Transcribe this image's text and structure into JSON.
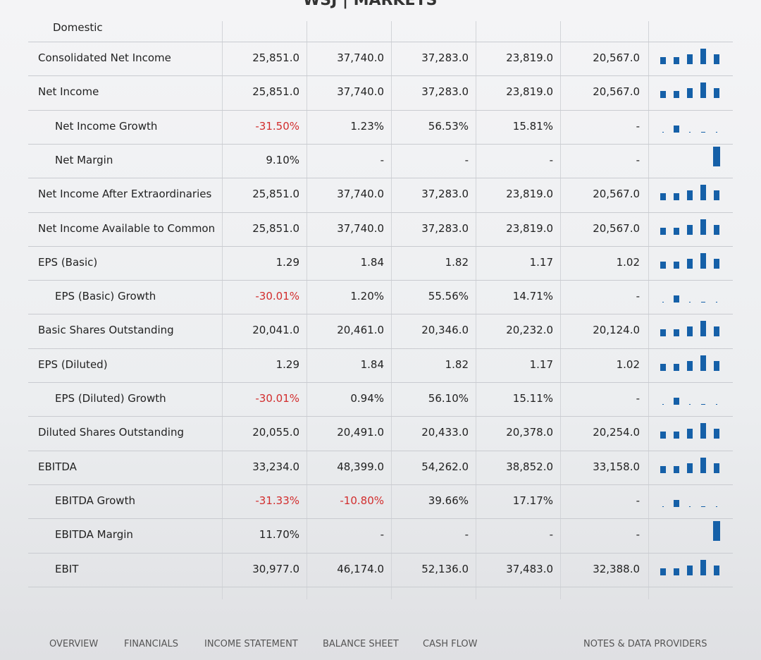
{
  "header": {
    "title": "WSJ | MARKETS",
    "section": "Domestic"
  },
  "table": {
    "rows": [
      [
        "Consolidated Net Income",
        "25,851.0",
        "37,740.0",
        "37,283.0",
        "23,819.0",
        "20,567.0"
      ],
      [
        "Net Income",
        "25,851.0",
        "37,740.0",
        "37,283.0",
        "23,819.0",
        "20,567.0"
      ],
      [
        "Net Income Growth",
        "-31.50%",
        "1.23%",
        "56.53%",
        "15.81%",
        "-"
      ],
      [
        "Net Margin",
        "9.10%",
        "-",
        "-",
        "-",
        "-"
      ],
      [
        "Net Income After Extraordinaries",
        "25,851.0",
        "37,740.0",
        "37,283.0",
        "23,819.0",
        "20,567.0"
      ],
      [
        "Net Income Available to Common",
        "25,851.0",
        "37,740.0",
        "37,283.0",
        "23,819.0",
        "20,567.0"
      ],
      [
        "EPS (Basic)",
        "1.29",
        "1.84",
        "1.82",
        "1.17",
        "1.02"
      ],
      [
        "EPS (Basic) Growth",
        "-30.01%",
        "1.20%",
        "55.56%",
        "14.71%",
        "-"
      ],
      [
        "Basic Shares Outstanding",
        "20,041.0",
        "20,461.0",
        "20,346.0",
        "20,232.0",
        "20,124.0"
      ],
      [
        "EPS (Diluted)",
        "1.29",
        "1.84",
        "1.82",
        "1.17",
        "1.02"
      ],
      [
        "EPS (Diluted) Growth",
        "-30.01%",
        "0.94%",
        "56.10%",
        "15.11%",
        "-"
      ],
      [
        "Diluted Shares Outstanding",
        "20,055.0",
        "20,491.0",
        "20,433.0",
        "20,378.0",
        "20,254.0"
      ],
      [
        "EBITDA",
        "33,234.0",
        "48,399.0",
        "54,262.0",
        "38,852.0",
        "33,158.0"
      ],
      [
        "EBITDA Growth",
        "-31.33%",
        "-10.80%",
        "39.66%",
        "17.17%",
        "-"
      ],
      [
        "EBITDA Margin",
        "11.70%",
        "-",
        "-",
        "-",
        "-"
      ],
      [
        "EBIT",
        "30,977.0",
        "46,174.0",
        "52,136.0",
        "37,483.0",
        "32,388.0"
      ]
    ]
  },
  "footer": {
    "links": [
      "OVERVIEW",
      "FINANCIALS",
      "INCOME STATEMENT",
      "BALANCE SHEET",
      "CASH FLOW",
      "NOTES & DATA PROVIDERS"
    ]
  }
}
